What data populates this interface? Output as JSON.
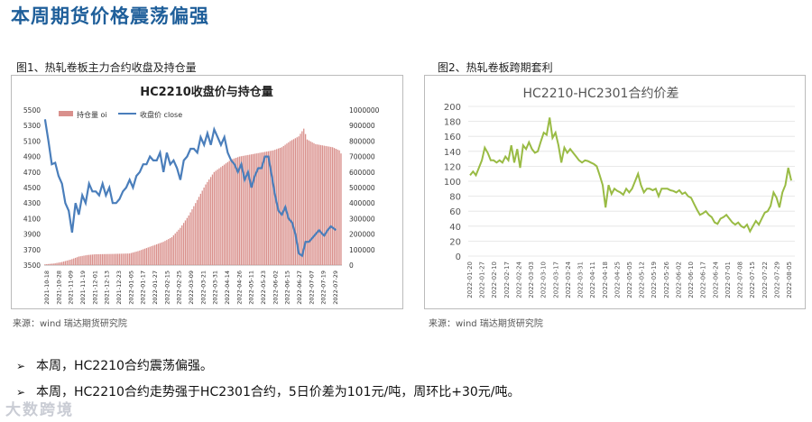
{
  "page": {
    "title": "本周期货价格震荡偏强",
    "fig1_label": "图1、热轧卷板主力合约收盘及持仓量",
    "fig2_label": "图2、热轧卷板跨期套利",
    "source1": "来源：wind   瑞达期货研究院",
    "source2": "来源：wind   瑞达期货研究院",
    "bullets": [
      "本周，HC2210合约震荡偏强。",
      "本周，HC2210合约走势强于HC2301合约，5日价差为101元/吨，周环比+30元/吨。"
    ],
    "logo": "大数跨境"
  },
  "chart_data": [
    {
      "type": "bar+line",
      "title": "HC2210收盘价与持仓量",
      "legend": [
        "持仓量 oi",
        "收盘价 close"
      ],
      "colors": {
        "bar": "#d9908c",
        "line": "#4a7ebb"
      },
      "y_left": {
        "min": 3500,
        "max": 5500,
        "ticks": [
          "5500",
          "5300",
          "5100",
          "4900",
          "4700",
          "4500",
          "4300",
          "4100",
          "3900",
          "3700",
          "3500"
        ]
      },
      "y_right": {
        "min": 0,
        "max": 1000000,
        "ticks": [
          "1000000",
          "900000",
          "800000",
          "700000",
          "600000",
          "500000",
          "400000",
          "300000",
          "200000",
          "100000",
          "0"
        ]
      },
      "x_ticks": [
        "2021-10-18",
        "2021-10-28",
        "2021-11-09",
        "2021-11-19",
        "2021-12-01",
        "2021-12-13",
        "2021-12-23",
        "2022-01-05",
        "2022-01-17",
        "2022-01-27",
        "2022-02-15",
        "2022-02-25",
        "2022-03-09",
        "2022-03-21",
        "2022-03-31",
        "2022-04-14",
        "2022-04-26",
        "2022-05-11",
        "2022-05-23",
        "2022-06-02",
        "2022-06-15",
        "2022-06-27",
        "2022-07-07",
        "2022-07-19",
        "2022-07-29"
      ],
      "oi_points": [
        [
          0,
          5000
        ],
        [
          5,
          10000
        ],
        [
          10,
          20000
        ],
        [
          15,
          35000
        ],
        [
          20,
          55000
        ],
        [
          25,
          65000
        ],
        [
          30,
          70000
        ],
        [
          40,
          72000
        ],
        [
          50,
          75000
        ],
        [
          55,
          90000
        ],
        [
          60,
          110000
        ],
        [
          65,
          130000
        ],
        [
          70,
          150000
        ],
        [
          75,
          180000
        ],
        [
          80,
          240000
        ],
        [
          85,
          320000
        ],
        [
          90,
          420000
        ],
        [
          95,
          520000
        ],
        [
          100,
          600000
        ],
        [
          105,
          640000
        ],
        [
          110,
          680000
        ],
        [
          115,
          700000
        ],
        [
          120,
          710000
        ],
        [
          125,
          720000
        ],
        [
          130,
          730000
        ],
        [
          135,
          740000
        ],
        [
          140,
          760000
        ],
        [
          145,
          800000
        ],
        [
          150,
          830000
        ],
        [
          153,
          880000
        ],
        [
          155,
          810000
        ],
        [
          160,
          780000
        ],
        [
          165,
          770000
        ],
        [
          170,
          760000
        ],
        [
          174,
          740000
        ],
        [
          176,
          700000
        ]
      ],
      "close_points": [
        [
          0,
          5380
        ],
        [
          2,
          5100
        ],
        [
          4,
          4800
        ],
        [
          6,
          4820
        ],
        [
          8,
          4650
        ],
        [
          10,
          4550
        ],
        [
          12,
          4300
        ],
        [
          14,
          4200
        ],
        [
          16,
          3920
        ],
        [
          18,
          4300
        ],
        [
          20,
          4150
        ],
        [
          22,
          4400
        ],
        [
          24,
          4300
        ],
        [
          26,
          4550
        ],
        [
          28,
          4450
        ],
        [
          30,
          4450
        ],
        [
          32,
          4400
        ],
        [
          34,
          4550
        ],
        [
          36,
          4400
        ],
        [
          38,
          4500
        ],
        [
          40,
          4300
        ],
        [
          42,
          4300
        ],
        [
          44,
          4350
        ],
        [
          46,
          4450
        ],
        [
          48,
          4500
        ],
        [
          50,
          4600
        ],
        [
          52,
          4500
        ],
        [
          54,
          4650
        ],
        [
          56,
          4700
        ],
        [
          58,
          4800
        ],
        [
          60,
          4800
        ],
        [
          62,
          4900
        ],
        [
          64,
          4850
        ],
        [
          66,
          4850
        ],
        [
          68,
          4950
        ],
        [
          70,
          4700
        ],
        [
          72,
          4950
        ],
        [
          74,
          4800
        ],
        [
          76,
          4850
        ],
        [
          78,
          4750
        ],
        [
          80,
          4600
        ],
        [
          82,
          4850
        ],
        [
          84,
          4900
        ],
        [
          86,
          5000
        ],
        [
          88,
          5000
        ],
        [
          90,
          4950
        ],
        [
          92,
          5150
        ],
        [
          94,
          5050
        ],
        [
          96,
          5200
        ],
        [
          98,
          5050
        ],
        [
          100,
          5250
        ],
        [
          102,
          5150
        ],
        [
          104,
          5050
        ],
        [
          106,
          5150
        ],
        [
          108,
          4950
        ],
        [
          110,
          4850
        ],
        [
          112,
          4800
        ],
        [
          114,
          4700
        ],
        [
          116,
          4800
        ],
        [
          118,
          4600
        ],
        [
          120,
          4700
        ],
        [
          122,
          4500
        ],
        [
          124,
          4650
        ],
        [
          126,
          4750
        ],
        [
          128,
          4750
        ],
        [
          130,
          4900
        ],
        [
          132,
          4900
        ],
        [
          134,
          4650
        ],
        [
          136,
          4400
        ],
        [
          138,
          4200
        ],
        [
          140,
          4150
        ],
        [
          142,
          4250
        ],
        [
          144,
          4100
        ],
        [
          146,
          4050
        ],
        [
          148,
          3900
        ],
        [
          150,
          3650
        ],
        [
          152,
          3620
        ],
        [
          154,
          3800
        ],
        [
          156,
          3800
        ],
        [
          158,
          3850
        ],
        [
          160,
          3900
        ],
        [
          162,
          3950
        ],
        [
          164,
          3900
        ],
        [
          165,
          3880
        ],
        [
          167,
          3950
        ],
        [
          169,
          4000
        ],
        [
          172,
          3950
        ]
      ],
      "n": 176
    },
    {
      "type": "line",
      "title": "HC2210-HC2301合约价差",
      "color": "#99bb44",
      "y": {
        "min": 0,
        "max": 200,
        "ticks": [
          "200",
          "180",
          "160",
          "140",
          "120",
          "100",
          "80",
          "60",
          "40",
          "20",
          "0"
        ]
      },
      "x_ticks": [
        "2022-01-20",
        "2022-01-27",
        "2022-02-10",
        "2022-02-17",
        "2022-02-24",
        "2022-03-03",
        "2022-03-10",
        "2022-03-17",
        "2022-03-24",
        "2022-03-31",
        "2022-04-11",
        "2022-04-18",
        "2022-04-25",
        "2022-05-05",
        "2022-05-12",
        "2022-05-19",
        "2022-05-26",
        "2022-06-02",
        "2022-06-10",
        "2022-06-17",
        "2022-06-24",
        "2022-07-01",
        "2022-07-08",
        "2022-07-15",
        "2022-07-22",
        "2022-07-29",
        "2022-08-05"
      ],
      "points": [
        [
          0,
          108
        ],
        [
          1,
          113
        ],
        [
          2,
          108
        ],
        [
          3,
          118
        ],
        [
          4,
          128
        ],
        [
          5,
          145
        ],
        [
          6,
          138
        ],
        [
          7,
          128
        ],
        [
          8,
          128
        ],
        [
          9,
          125
        ],
        [
          10,
          128
        ],
        [
          11,
          125
        ],
        [
          12,
          133
        ],
        [
          13,
          128
        ],
        [
          14,
          148
        ],
        [
          15,
          125
        ],
        [
          16,
          143
        ],
        [
          17,
          118
        ],
        [
          18,
          148
        ],
        [
          19,
          143
        ],
        [
          20,
          152
        ],
        [
          21,
          143
        ],
        [
          22,
          138
        ],
        [
          23,
          140
        ],
        [
          24,
          153
        ],
        [
          25,
          165
        ],
        [
          26,
          162
        ],
        [
          27,
          185
        ],
        [
          28,
          158
        ],
        [
          29,
          165
        ],
        [
          30,
          148
        ],
        [
          31,
          125
        ],
        [
          32,
          145
        ],
        [
          33,
          138
        ],
        [
          34,
          143
        ],
        [
          35,
          138
        ],
        [
          36,
          133
        ],
        [
          37,
          128
        ],
        [
          38,
          125
        ],
        [
          39,
          128
        ],
        [
          40,
          127
        ],
        [
          41,
          125
        ],
        [
          42,
          123
        ],
        [
          43,
          120
        ],
        [
          44,
          108
        ],
        [
          45,
          95
        ],
        [
          46,
          65
        ],
        [
          47,
          95
        ],
        [
          48,
          83
        ],
        [
          49,
          90
        ],
        [
          50,
          87
        ],
        [
          51,
          85
        ],
        [
          52,
          82
        ],
        [
          53,
          90
        ],
        [
          54,
          85
        ],
        [
          55,
          90
        ],
        [
          56,
          100
        ],
        [
          57,
          110
        ],
        [
          58,
          95
        ],
        [
          59,
          85
        ],
        [
          60,
          90
        ],
        [
          61,
          90
        ],
        [
          62,
          88
        ],
        [
          63,
          90
        ],
        [
          64,
          80
        ],
        [
          65,
          90
        ],
        [
          66,
          90
        ],
        [
          67,
          90
        ],
        [
          68,
          88
        ],
        [
          69,
          87
        ],
        [
          70,
          85
        ],
        [
          71,
          88
        ],
        [
          72,
          83
        ],
        [
          73,
          85
        ],
        [
          74,
          80
        ],
        [
          75,
          78
        ],
        [
          76,
          70
        ],
        [
          77,
          62
        ],
        [
          78,
          55
        ],
        [
          79,
          57
        ],
        [
          80,
          60
        ],
        [
          81,
          55
        ],
        [
          82,
          52
        ],
        [
          83,
          45
        ],
        [
          84,
          43
        ],
        [
          85,
          50
        ],
        [
          86,
          52
        ],
        [
          87,
          55
        ],
        [
          88,
          50
        ],
        [
          89,
          45
        ],
        [
          90,
          42
        ],
        [
          91,
          45
        ],
        [
          92,
          40
        ],
        [
          93,
          38
        ],
        [
          94,
          42
        ],
        [
          95,
          33
        ],
        [
          96,
          40
        ],
        [
          97,
          47
        ],
        [
          98,
          42
        ],
        [
          99,
          50
        ],
        [
          100,
          58
        ],
        [
          101,
          60
        ],
        [
          102,
          67
        ],
        [
          103,
          85
        ],
        [
          104,
          78
        ],
        [
          105,
          65
        ],
        [
          106,
          85
        ],
        [
          107,
          95
        ],
        [
          108,
          118
        ],
        [
          109,
          101
        ]
      ],
      "n": 110
    }
  ]
}
